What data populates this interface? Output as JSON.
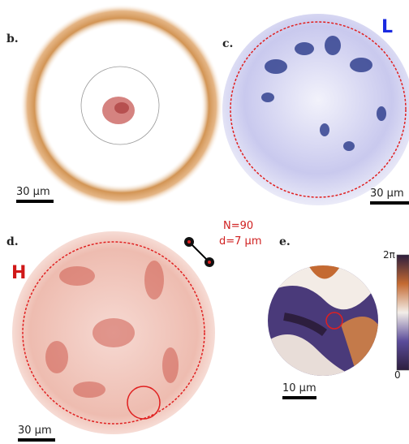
{
  "panels": [
    {
      "label": "b.",
      "scale_bar": "30 µm"
    },
    {
      "label": "c.",
      "tag": "L",
      "scale_bar": "30 µm"
    },
    {
      "label": "d.",
      "tag": "H",
      "scale_bar": "30 µm",
      "annotation": [
        "N=90",
        "d=7 µm"
      ]
    },
    {
      "label": "e.",
      "scale_bar": "10 µm",
      "colorbar": {
        "max": "2π",
        "min": "0"
      }
    }
  ]
}
